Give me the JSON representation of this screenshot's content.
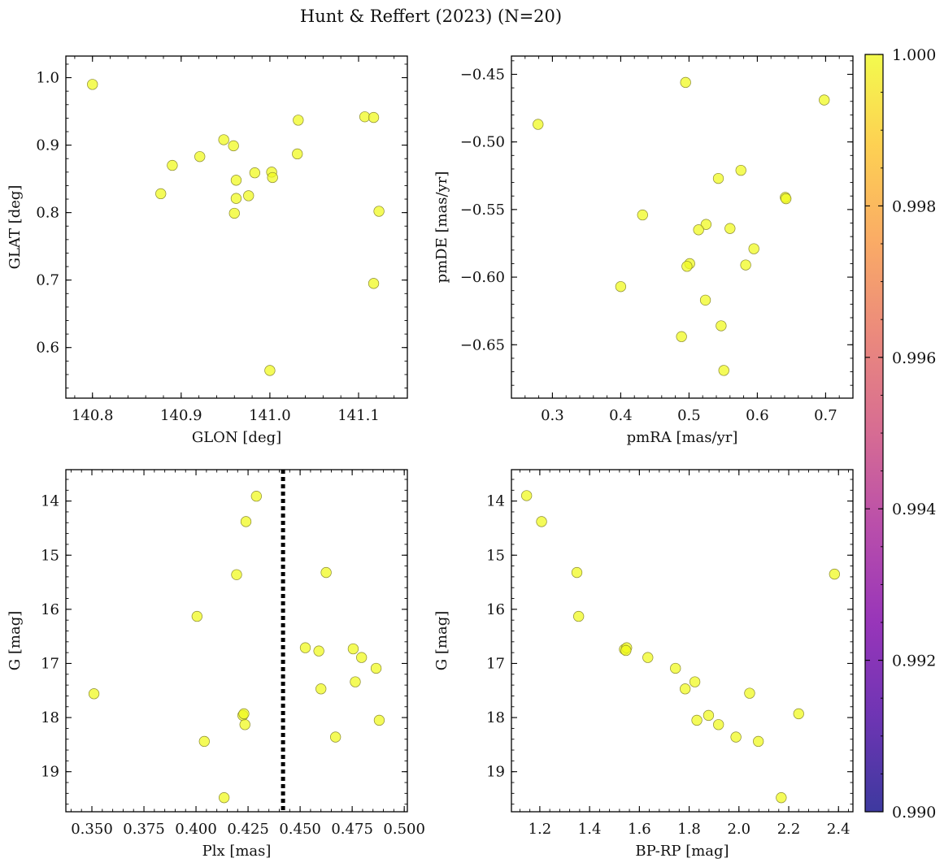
{
  "figure": {
    "title": "Hunt & Reffert (2023) (N=20)"
  },
  "colorbar": {
    "range": [
      0.99,
      1.0
    ],
    "ticks": [
      0.99,
      0.992,
      0.994,
      0.996,
      0.998,
      1.0
    ],
    "tick_labels": [
      "0.990",
      "0.992",
      "0.994",
      "0.996",
      "0.998",
      "1.000"
    ],
    "colormap": "plasma"
  },
  "marker": {
    "fill": "#f0f921",
    "edge": "#8a8a30",
    "opacity": 0.75
  },
  "chart_data": [
    {
      "type": "scatter",
      "xlabel": "GLON [deg]",
      "ylabel": "GLAT [deg]",
      "xlim": [
        140.77,
        141.155
      ],
      "ylim": [
        0.525,
        1.032
      ],
      "xticks": [
        140.8,
        140.9,
        141.0,
        141.1
      ],
      "xtick_labels": [
        "140.8",
        "140.9",
        "141.0",
        "141.1"
      ],
      "yticks": [
        0.6,
        0.7,
        0.8,
        0.9,
        1.0
      ],
      "ytick_labels": [
        "0.6",
        "0.7",
        "0.8",
        "0.9",
        "1.0"
      ],
      "x": [
        140.8,
        140.877,
        140.89,
        140.921,
        140.948,
        140.959,
        140.96,
        140.962,
        140.962,
        140.976,
        140.983,
        141.0,
        141.002,
        141.003,
        141.031,
        141.032,
        141.107,
        141.117,
        141.117,
        141.123
      ],
      "y": [
        0.99,
        0.828,
        0.87,
        0.883,
        0.908,
        0.899,
        0.799,
        0.848,
        0.821,
        0.825,
        0.859,
        0.566,
        0.86,
        0.852,
        0.887,
        0.937,
        0.942,
        0.941,
        0.695,
        0.802
      ],
      "c": [
        1,
        1,
        1,
        1,
        1,
        1,
        1,
        1,
        1,
        1,
        1,
        1,
        1,
        1,
        1,
        1,
        1,
        1,
        1,
        1
      ]
    },
    {
      "type": "scatter",
      "xlabel": "pmRA [mas/yr]",
      "ylabel": "pmDE [mas/yr]",
      "xlim": [
        0.24,
        0.74
      ],
      "ylim": [
        -0.6895,
        -0.4365
      ],
      "xticks": [
        0.3,
        0.4,
        0.5,
        0.6,
        0.7
      ],
      "xtick_labels": [
        "0.3",
        "0.4",
        "0.5",
        "0.6",
        "0.7"
      ],
      "yticks": [
        -0.65,
        -0.6,
        -0.55,
        -0.5,
        -0.45
      ],
      "ytick_labels": [
        "−0.65",
        "−0.60",
        "−0.55",
        "−0.50",
        "−0.45"
      ],
      "x": [
        0.279,
        0.495,
        0.698,
        0.432,
        0.576,
        0.543,
        0.641,
        0.642,
        0.525,
        0.514,
        0.56,
        0.595,
        0.501,
        0.497,
        0.583,
        0.4,
        0.524,
        0.489,
        0.547,
        0.551
      ],
      "y": [
        -0.487,
        -0.456,
        -0.469,
        -0.554,
        -0.521,
        -0.527,
        -0.541,
        -0.542,
        -0.561,
        -0.565,
        -0.564,
        -0.579,
        -0.59,
        -0.592,
        -0.591,
        -0.607,
        -0.617,
        -0.644,
        -0.636,
        -0.669
      ],
      "c": [
        1,
        1,
        1,
        1,
        1,
        1,
        1,
        1,
        1,
        1,
        1,
        1,
        1,
        1,
        1,
        1,
        1,
        1,
        1,
        1
      ]
    },
    {
      "type": "scatter",
      "xlabel": "Plx [mas]",
      "ylabel": "G [mag]",
      "xlim": [
        0.3375,
        0.5015
      ],
      "ylim": [
        19.74,
        13.42
      ],
      "inverted_y": true,
      "xticks": [
        0.35,
        0.375,
        0.4,
        0.425,
        0.45,
        0.475,
        0.5
      ],
      "xtick_labels": [
        "0.350",
        "0.375",
        "0.400",
        "0.425",
        "0.450",
        "0.475",
        "0.500"
      ],
      "yticks": [
        14,
        15,
        16,
        17,
        18,
        19
      ],
      "ytick_labels": [
        "14",
        "15",
        "16",
        "17",
        "18",
        "19"
      ],
      "vline": 0.4418,
      "x": [
        0.351,
        0.4005,
        0.404,
        0.4135,
        0.4195,
        0.4225,
        0.423,
        0.4235,
        0.424,
        0.429,
        0.4525,
        0.459,
        0.46,
        0.4625,
        0.467,
        0.4755,
        0.4765,
        0.4795,
        0.4865,
        0.488
      ],
      "y": [
        17.56,
        16.13,
        18.44,
        19.48,
        15.36,
        17.96,
        17.93,
        18.13,
        14.38,
        13.91,
        16.71,
        16.77,
        17.47,
        15.32,
        18.36,
        16.73,
        17.34,
        16.89,
        17.09,
        18.05
      ],
      "c": [
        1,
        1,
        1,
        1,
        1,
        1,
        1,
        1,
        1,
        1,
        1,
        1,
        1,
        1,
        1,
        1,
        1,
        1,
        1,
        1
      ]
    },
    {
      "type": "scatter",
      "xlabel": "BP-RP [mag]",
      "ylabel": "G [mag]",
      "xlim": [
        1.086,
        2.458
      ],
      "ylim": [
        19.74,
        13.42
      ],
      "inverted_y": true,
      "xticks": [
        1.2,
        1.4,
        1.6,
        1.8,
        2.0,
        2.2,
        2.4
      ],
      "xtick_labels": [
        "1.2",
        "1.4",
        "1.6",
        "1.8",
        "2.0",
        "2.2",
        "2.4"
      ],
      "yticks": [
        14,
        15,
        16,
        17,
        18,
        19
      ],
      "ytick_labels": [
        "14",
        "15",
        "16",
        "17",
        "18",
        "19"
      ],
      "x": [
        1.147,
        1.207,
        1.349,
        1.356,
        1.54,
        1.549,
        1.634,
        1.745,
        1.784,
        1.823,
        1.831,
        1.878,
        1.918,
        1.988,
        2.043,
        2.078,
        2.17,
        2.24,
        2.384,
        1.546
      ],
      "y": [
        13.9,
        14.38,
        15.32,
        16.13,
        16.74,
        16.71,
        16.89,
        17.09,
        17.47,
        17.34,
        18.05,
        17.96,
        18.13,
        18.36,
        17.55,
        18.44,
        19.48,
        17.93,
        15.35,
        16.76
      ],
      "c": [
        1,
        1,
        1,
        1,
        1,
        1,
        1,
        1,
        1,
        1,
        1,
        1,
        1,
        1,
        1,
        1,
        1,
        1,
        1,
        1
      ]
    }
  ]
}
